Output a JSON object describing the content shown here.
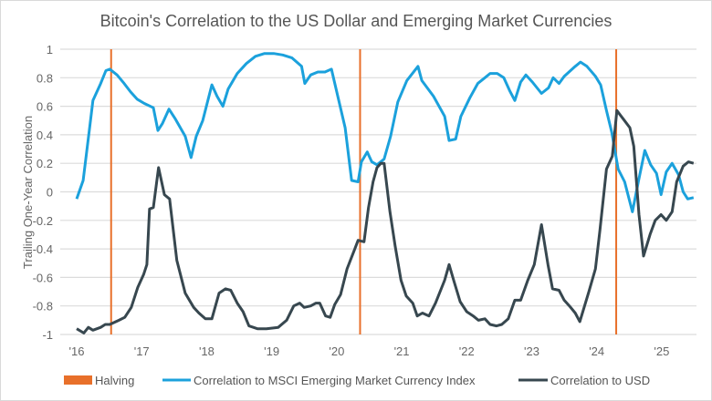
{
  "chart_data": {
    "type": "line",
    "title": "Bitcoin's Correlation to the US Dollar and Emerging Market Currencies",
    "xlabel": "",
    "ylabel": "Trailing One-Year Correlation",
    "xlim": [
      2016,
      2025.5
    ],
    "ylim": [
      -1,
      1
    ],
    "grid": true,
    "legend_position": "bottom",
    "x_ticks": [
      2016,
      2017,
      2018,
      2019,
      2020,
      2021,
      2022,
      2023,
      2024,
      2025
    ],
    "x_tick_labels": [
      "'16",
      "'17",
      "'18",
      "'19",
      "'20",
      "'21",
      "'22",
      "'23",
      "'24",
      "'25"
    ],
    "y_ticks": [
      1,
      0.8,
      0.6,
      0.4,
      0.2,
      0,
      -0.2,
      -0.4,
      -0.6,
      -0.8,
      -1
    ],
    "y_tick_labels": [
      "1",
      "0.8",
      "0.6",
      "0.4",
      "0.2",
      "0",
      "-0.2",
      "-0.4",
      "-0.6",
      "-0.8",
      "-1"
    ],
    "halvings": {
      "name": "Halving",
      "color": "#e8702a",
      "x": [
        2016.53,
        2020.36,
        2024.3
      ]
    },
    "series": [
      {
        "name": "Correlation to MSCI Emerging Market Currency Index",
        "color": "#1ba1dc",
        "x": [
          2016.0,
          2016.1,
          2016.2,
          2016.25,
          2016.37,
          2016.45,
          2016.51,
          2016.62,
          2016.73,
          2016.83,
          2016.93,
          2017.04,
          2017.18,
          2017.25,
          2017.32,
          2017.42,
          2017.52,
          2017.67,
          2017.76,
          2017.84,
          2017.94,
          2018.08,
          2018.16,
          2018.25,
          2018.33,
          2018.47,
          2018.61,
          2018.75,
          2018.89,
          2019.03,
          2019.17,
          2019.31,
          2019.46,
          2019.51,
          2019.6,
          2019.71,
          2019.82,
          2019.92,
          2020.13,
          2020.23,
          2020.33,
          2020.38,
          2020.47,
          2020.54,
          2020.62,
          2020.73,
          2020.83,
          2020.94,
          2021.08,
          2021.25,
          2021.31,
          2021.49,
          2021.66,
          2021.73,
          2021.83,
          2021.91,
          2022.05,
          2022.17,
          2022.28,
          2022.36,
          2022.47,
          2022.57,
          2022.66,
          2022.74,
          2022.83,
          2022.91,
          2023.01,
          2023.15,
          2023.26,
          2023.33,
          2023.42,
          2023.5,
          2023.67,
          2023.75,
          2023.85,
          2023.98,
          2024.06,
          2024.15,
          2024.23,
          2024.33,
          2024.43,
          2024.55,
          2024.64,
          2024.74,
          2024.83,
          2024.92,
          2024.99,
          2025.07,
          2025.16,
          2025.26,
          2025.33,
          2025.4,
          2025.49
        ],
        "values": [
          -0.05,
          0.08,
          0.45,
          0.64,
          0.76,
          0.85,
          0.86,
          0.82,
          0.76,
          0.7,
          0.65,
          0.62,
          0.59,
          0.43,
          0.48,
          0.58,
          0.51,
          0.39,
          0.24,
          0.39,
          0.5,
          0.75,
          0.67,
          0.6,
          0.72,
          0.83,
          0.9,
          0.95,
          0.97,
          0.97,
          0.96,
          0.94,
          0.88,
          0.76,
          0.82,
          0.84,
          0.84,
          0.86,
          0.45,
          0.08,
          0.07,
          0.21,
          0.28,
          0.21,
          0.19,
          0.23,
          0.39,
          0.63,
          0.78,
          0.88,
          0.78,
          0.67,
          0.53,
          0.36,
          0.37,
          0.53,
          0.66,
          0.76,
          0.8,
          0.83,
          0.83,
          0.8,
          0.71,
          0.64,
          0.77,
          0.82,
          0.77,
          0.69,
          0.73,
          0.8,
          0.76,
          0.81,
          0.88,
          0.91,
          0.88,
          0.81,
          0.75,
          0.57,
          0.42,
          0.16,
          0.07,
          -0.14,
          0.07,
          0.29,
          0.19,
          0.13,
          -0.02,
          0.14,
          0.2,
          0.12,
          0.0,
          -0.05,
          -0.04
        ]
      },
      {
        "name": "Correlation to USD",
        "color": "#37474f",
        "x": [
          2016.0,
          2016.11,
          2016.18,
          2016.25,
          2016.37,
          2016.44,
          2016.51,
          2016.65,
          2016.74,
          2016.84,
          2016.94,
          2017.03,
          2017.08,
          2017.12,
          2017.18,
          2017.26,
          2017.35,
          2017.43,
          2017.54,
          2017.67,
          2017.8,
          2017.88,
          2017.98,
          2018.08,
          2018.19,
          2018.29,
          2018.37,
          2018.47,
          2018.56,
          2018.65,
          2018.78,
          2018.92,
          2019.1,
          2019.23,
          2019.34,
          2019.43,
          2019.5,
          2019.6,
          2019.68,
          2019.74,
          2019.83,
          2019.9,
          2019.97,
          2020.06,
          2020.16,
          2020.27,
          2020.33,
          2020.42,
          2020.49,
          2020.56,
          2020.62,
          2020.68,
          2020.73,
          2020.82,
          2020.9,
          2020.99,
          2021.07,
          2021.17,
          2021.24,
          2021.32,
          2021.42,
          2021.52,
          2021.66,
          2021.73,
          2021.8,
          2021.9,
          2022.0,
          2022.1,
          2022.18,
          2022.28,
          2022.36,
          2022.46,
          2022.54,
          2022.64,
          2022.74,
          2022.83,
          2022.94,
          2023.04,
          2023.15,
          2023.25,
          2023.32,
          2023.42,
          2023.5,
          2023.58,
          2023.67,
          2023.74,
          2023.88,
          2023.98,
          2024.05,
          2024.15,
          2024.24,
          2024.31,
          2024.41,
          2024.51,
          2024.57,
          2024.65,
          2024.72,
          2024.82,
          2024.9,
          2024.99,
          2025.07,
          2025.16,
          2025.23,
          2025.33,
          2025.41,
          2025.49
        ],
        "values": [
          -0.96,
          -0.99,
          -0.95,
          -0.97,
          -0.95,
          -0.93,
          -0.93,
          -0.9,
          -0.88,
          -0.81,
          -0.67,
          -0.58,
          -0.51,
          -0.12,
          -0.11,
          0.17,
          -0.02,
          -0.05,
          -0.48,
          -0.71,
          -0.81,
          -0.85,
          -0.89,
          -0.89,
          -0.71,
          -0.68,
          -0.69,
          -0.78,
          -0.84,
          -0.94,
          -0.96,
          -0.96,
          -0.95,
          -0.9,
          -0.8,
          -0.78,
          -0.81,
          -0.8,
          -0.78,
          -0.78,
          -0.87,
          -0.88,
          -0.79,
          -0.72,
          -0.54,
          -0.41,
          -0.34,
          -0.35,
          -0.11,
          0.07,
          0.17,
          0.2,
          0.2,
          -0.14,
          -0.38,
          -0.62,
          -0.73,
          -0.78,
          -0.87,
          -0.85,
          -0.87,
          -0.78,
          -0.62,
          -0.51,
          -0.62,
          -0.77,
          -0.84,
          -0.87,
          -0.9,
          -0.89,
          -0.93,
          -0.94,
          -0.93,
          -0.89,
          -0.76,
          -0.76,
          -0.62,
          -0.51,
          -0.23,
          -0.51,
          -0.68,
          -0.69,
          -0.76,
          -0.8,
          -0.85,
          -0.91,
          -0.7,
          -0.54,
          -0.27,
          0.16,
          0.25,
          0.57,
          0.51,
          0.45,
          0.32,
          -0.16,
          -0.45,
          -0.3,
          -0.2,
          -0.16,
          -0.2,
          -0.14,
          0.07,
          0.18,
          0.21,
          0.2
        ]
      }
    ]
  }
}
